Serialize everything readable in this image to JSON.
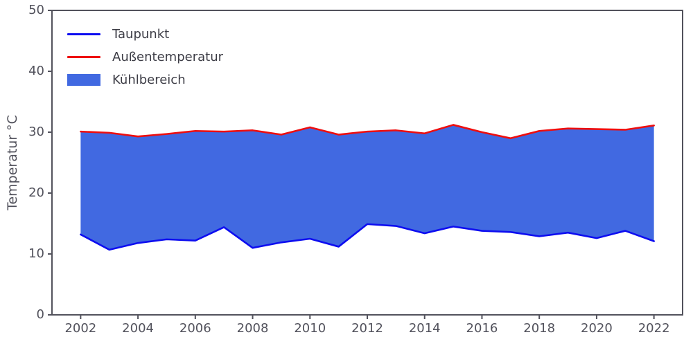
{
  "chart_data": {
    "type": "area",
    "title": "",
    "ylabel": "Temperatur °C",
    "xlabel": "",
    "x": [
      2002,
      2003,
      2004,
      2005,
      2006,
      2007,
      2008,
      2009,
      2010,
      2011,
      2012,
      2013,
      2014,
      2015,
      2016,
      2017,
      2018,
      2019,
      2020,
      2021,
      2022
    ],
    "series": [
      {
        "name": "Taupunkt",
        "color": "#0d0df0",
        "values": [
          13.2,
          10.7,
          11.8,
          12.4,
          12.2,
          14.4,
          11.0,
          11.9,
          12.5,
          11.2,
          14.9,
          14.6,
          13.4,
          14.5,
          13.8,
          13.6,
          12.9,
          13.5,
          12.6,
          13.8,
          12.1
        ]
      },
      {
        "name": "Außentemperatur",
        "color": "#ee0e0e",
        "values": [
          30.1,
          29.9,
          29.3,
          29.7,
          30.2,
          30.1,
          30.3,
          29.6,
          30.8,
          29.6,
          30.1,
          30.3,
          29.8,
          31.2,
          30.0,
          29.0,
          30.2,
          30.6,
          30.5,
          30.4,
          31.1
        ]
      }
    ],
    "fill": {
      "name": "Kühlbereich",
      "color": "#4169e1",
      "between": [
        "Taupunkt",
        "Außentemperatur"
      ]
    },
    "xlim": [
      2001,
      2023
    ],
    "ylim": [
      0,
      50
    ],
    "xticks": [
      2002,
      2004,
      2006,
      2008,
      2010,
      2012,
      2014,
      2016,
      2018,
      2020,
      2022
    ],
    "yticks": [
      0,
      10,
      20,
      30,
      40,
      50
    ],
    "axis_color": "#52525c",
    "grid": false,
    "legend_position": "upper-left"
  }
}
